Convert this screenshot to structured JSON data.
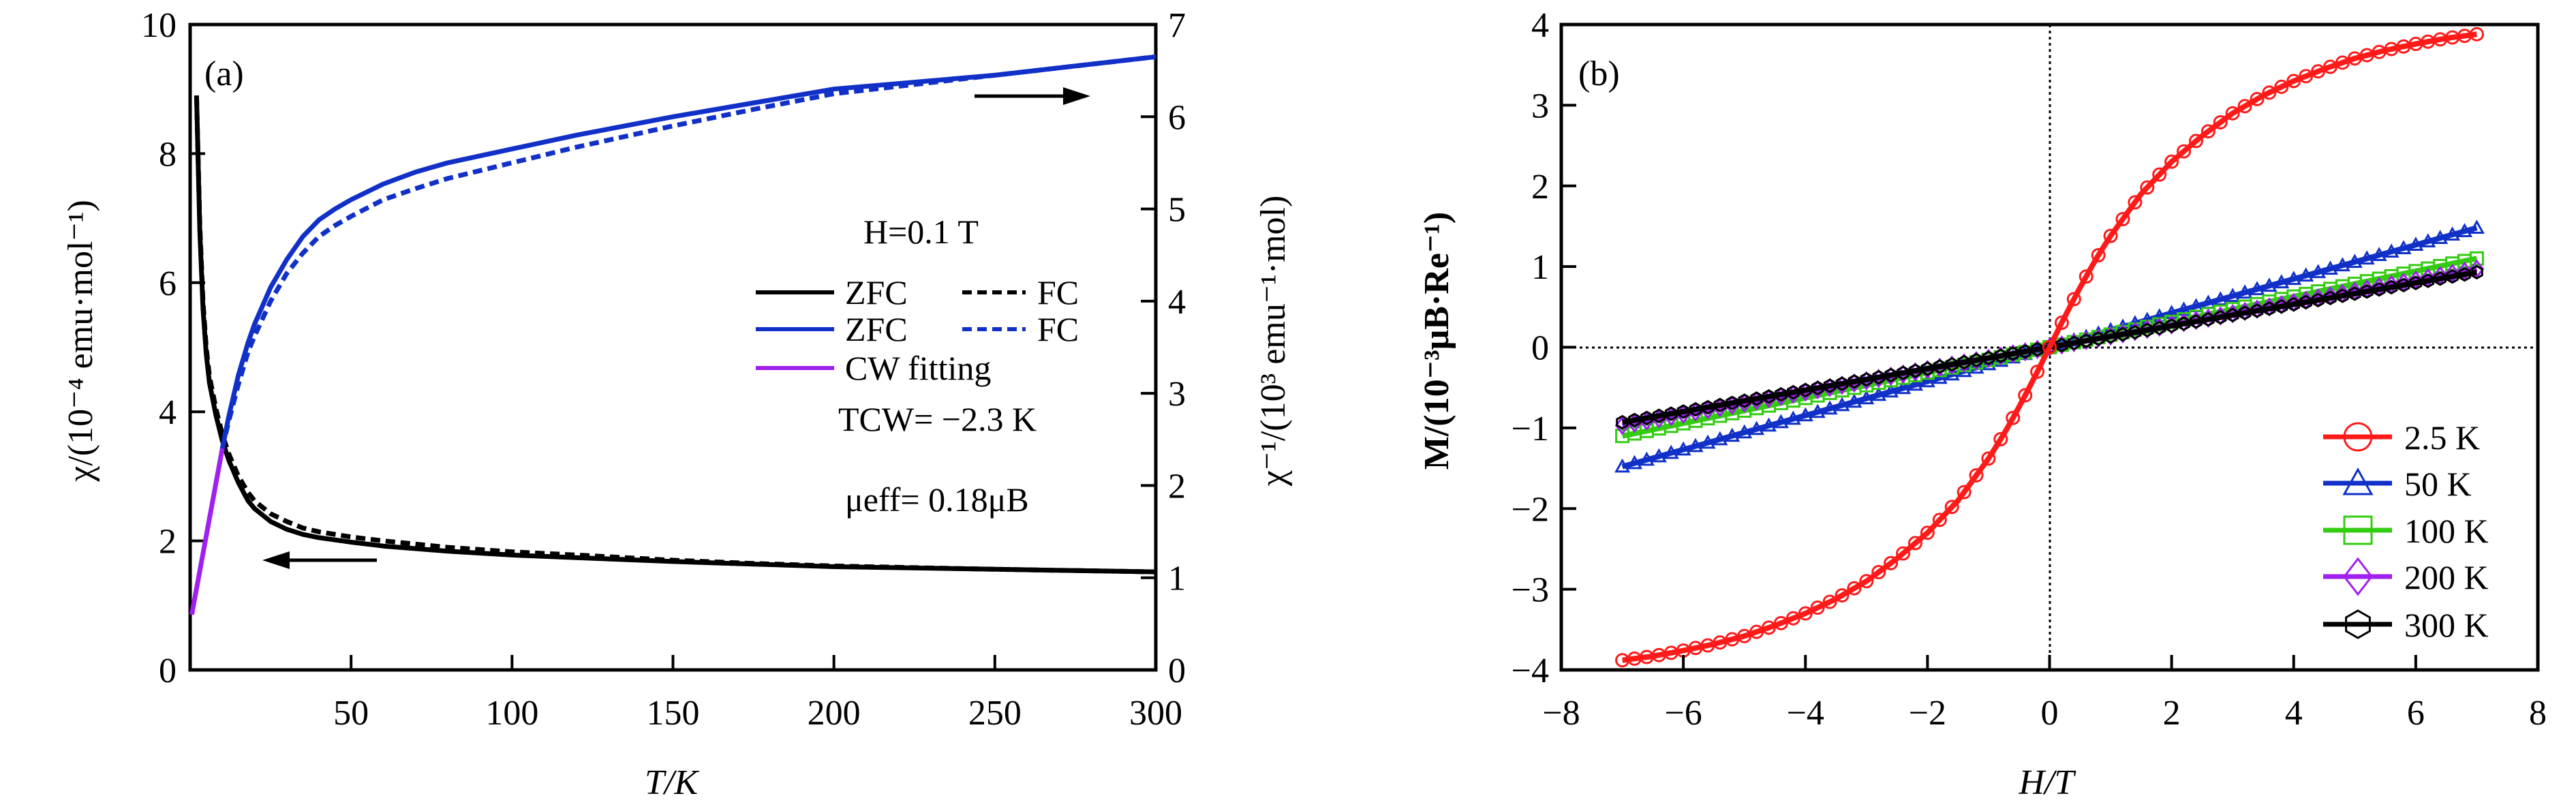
{
  "chart_data": [
    {
      "type": "line",
      "panel_label": "(a)",
      "xlabel": "T/K",
      "ylabel": "χ/(10⁻⁴ emu·mol⁻¹)",
      "ylabel_right": "χ⁻¹/(10³ emu⁻¹·mol)",
      "xlim": [
        0,
        300
      ],
      "ylim": [
        0,
        10
      ],
      "ylim_right": [
        0,
        7
      ],
      "xticks": [
        50,
        100,
        150,
        200,
        250,
        300
      ],
      "yticks": [
        0,
        2,
        4,
        6,
        8,
        10
      ],
      "yticks_right": [
        0,
        1,
        2,
        3,
        4,
        5,
        6,
        7
      ],
      "annotations": {
        "field": "H=0.1 T",
        "tcw": "TCW= −2.3 K",
        "mueff": "μeff= 0.18μB"
      },
      "legend_position": "center-right",
      "series": [
        {
          "name": "ZFC",
          "axis": "left",
          "color": "#000000",
          "style": "solid",
          "x": [
            2,
            3,
            4,
            5,
            6,
            8,
            10,
            12,
            15,
            18,
            20,
            25,
            30,
            35,
            40,
            50,
            60,
            70,
            80,
            100,
            120,
            150,
            175,
            200,
            250,
            300
          ],
          "y": [
            8.9,
            6.8,
            5.6,
            4.9,
            4.45,
            3.95,
            3.55,
            3.25,
            2.9,
            2.62,
            2.5,
            2.3,
            2.18,
            2.1,
            2.05,
            1.98,
            1.92,
            1.88,
            1.84,
            1.78,
            1.74,
            1.68,
            1.64,
            1.6,
            1.56,
            1.52
          ]
        },
        {
          "name": "FC",
          "axis": "left",
          "color": "#000000",
          "style": "dashed",
          "x": [
            2,
            3,
            4,
            5,
            6,
            8,
            10,
            12,
            15,
            18,
            20,
            25,
            30,
            35,
            40,
            50,
            60,
            70,
            80,
            100,
            120,
            150,
            175,
            200,
            250,
            300
          ],
          "y": [
            8.9,
            6.9,
            5.7,
            5.0,
            4.55,
            4.05,
            3.65,
            3.35,
            3.0,
            2.75,
            2.62,
            2.42,
            2.3,
            2.2,
            2.14,
            2.06,
            2.0,
            1.95,
            1.9,
            1.83,
            1.78,
            1.7,
            1.65,
            1.61,
            1.56,
            1.52
          ]
        },
        {
          "name": "ZFC",
          "axis": "right",
          "color": "#1030c8",
          "style": "solid",
          "x": [
            10,
            12,
            15,
            18,
            20,
            25,
            30,
            35,
            40,
            45,
            50,
            60,
            70,
            80,
            100,
            120,
            150,
            175,
            200,
            250,
            300
          ],
          "y": [
            2.4,
            2.75,
            3.2,
            3.55,
            3.75,
            4.15,
            4.45,
            4.7,
            4.88,
            5.0,
            5.1,
            5.27,
            5.4,
            5.5,
            5.65,
            5.8,
            6.0,
            6.15,
            6.3,
            6.45,
            6.65
          ]
        },
        {
          "name": "FC",
          "axis": "right",
          "color": "#1030c8",
          "style": "dashed",
          "x": [
            10,
            12,
            15,
            18,
            20,
            25,
            30,
            35,
            40,
            45,
            50,
            60,
            70,
            80,
            100,
            120,
            150,
            175,
            200,
            250,
            300
          ],
          "y": [
            2.4,
            2.7,
            3.1,
            3.45,
            3.62,
            4.0,
            4.3,
            4.52,
            4.7,
            4.82,
            4.92,
            5.1,
            5.22,
            5.33,
            5.5,
            5.67,
            5.9,
            6.08,
            6.25,
            6.45,
            6.65
          ]
        },
        {
          "name": "CW fitting",
          "axis": "right",
          "color": "#a020f0",
          "style": "solid",
          "x": [
            0.5,
            10
          ],
          "y": [
            0.6,
            2.4
          ]
        }
      ]
    },
    {
      "type": "scatter",
      "panel_label": "(b)",
      "xlabel": "H/T",
      "ylabel": "M/(10⁻³μB·Re⁻¹)",
      "xlim": [
        -8,
        8
      ],
      "ylim": [
        -4,
        4
      ],
      "xticks": [
        -8,
        -6,
        -4,
        -2,
        0,
        2,
        4,
        6,
        8
      ],
      "yticks": [
        -4,
        -3,
        -2,
        -1,
        0,
        1,
        2,
        3,
        4
      ],
      "xtick_labels": [
        "−8",
        "−6",
        "−4",
        "−2",
        "0",
        "2",
        "4",
        "6",
        "8"
      ],
      "ytick_labels": [
        "−4",
        "−3",
        "−2",
        "−1",
        "0",
        "1",
        "2",
        "3",
        "4"
      ],
      "legend_position": "bottom-right",
      "series": [
        {
          "name": "2.5 K",
          "color": "#ff1a1a",
          "marker": "circle",
          "x": [
            0,
            0.25,
            0.5,
            0.75,
            1,
            1.5,
            2,
            2.5,
            3,
            3.5,
            4,
            4.5,
            5,
            5.5,
            6,
            6.5,
            7
          ],
          "y": [
            0,
            0.38,
            0.74,
            1.08,
            1.38,
            1.9,
            2.3,
            2.62,
            2.9,
            3.12,
            3.3,
            3.45,
            3.58,
            3.68,
            3.76,
            3.83,
            3.88
          ]
        },
        {
          "name": "50 K",
          "color": "#1030c8",
          "marker": "triangle",
          "x": [
            -7,
            7
          ],
          "y": [
            -1.48,
            1.48
          ]
        },
        {
          "name": "100 K",
          "color": "#33cc11",
          "marker": "square",
          "x": [
            -7,
            7
          ],
          "y": [
            -1.1,
            1.1
          ]
        },
        {
          "name": "200 K",
          "color": "#a020f0",
          "marker": "diamond",
          "x": [
            -7,
            7
          ],
          "y": [
            -0.97,
            0.97
          ]
        },
        {
          "name": "300 K",
          "color": "#000000",
          "marker": "hexagon",
          "x": [
            -7,
            7
          ],
          "y": [
            -0.93,
            0.93
          ]
        }
      ]
    }
  ]
}
